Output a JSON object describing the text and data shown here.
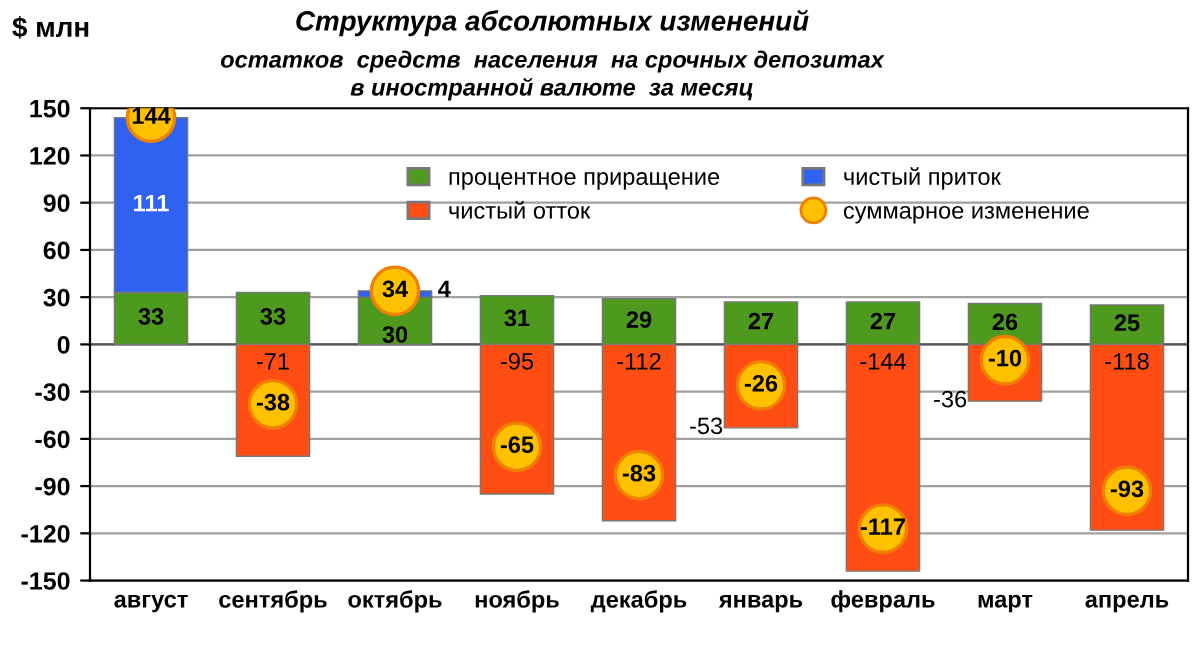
{
  "chart_data": {
    "type": "bar",
    "title": "Структура абсолютных изменений",
    "subtitle": "остатков  средств  населения  на срочных депозитах\nв иностранной валюте  за месяц",
    "ylabel": "$ млн",
    "categories": [
      "август",
      "сентябрь",
      "октябрь",
      "ноябрь",
      "декабрь",
      "январь",
      "февраль",
      "март",
      "апрель"
    ],
    "stacked": true,
    "series": [
      {
        "name": "процентное приращение",
        "color": "#4e9a1e",
        "values": [
          33,
          33,
          30,
          31,
          29,
          27,
          27,
          26,
          25
        ]
      },
      {
        "name": "чистый отток",
        "color": "#ff4d14",
        "values": [
          null,
          -71,
          null,
          -95,
          -112,
          -53,
          -144,
          -36,
          -118
        ]
      },
      {
        "name": "чистый приток",
        "color": "#2f62f0",
        "values": [
          111,
          null,
          4,
          null,
          null,
          null,
          null,
          null,
          null
        ]
      },
      {
        "name": "суммарное изменение",
        "type": "scatter",
        "color": "#ffc000",
        "x": [
          "август",
          "сентябрь",
          "октябрь",
          "ноябрь",
          "декабрь",
          "январь",
          "февраль",
          "март",
          "апрель"
        ],
        "values": [
          144,
          -38,
          34,
          -65,
          -83,
          -26,
          -117,
          -10,
          -93
        ]
      }
    ],
    "ylim": [
      -150,
      150
    ],
    "yticks": [
      -150,
      -120,
      -90,
      -60,
      -30,
      0,
      30,
      60,
      90,
      120,
      150
    ],
    "grid": "y",
    "legend": "top",
    "data_labels": true,
    "marker": "circle"
  }
}
